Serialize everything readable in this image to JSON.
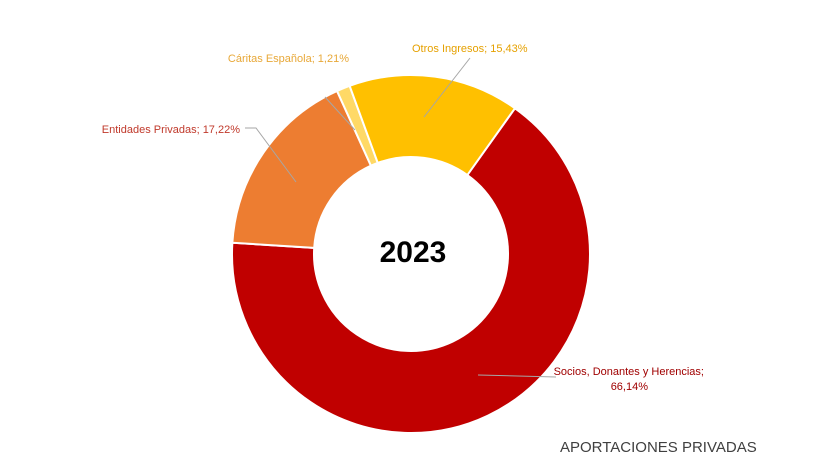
{
  "chart_data": {
    "type": "pie",
    "variant": "donut",
    "center_label": "2023",
    "footer_label": "APORTACIONES PRIVADAS",
    "start_category": "Socios, Donantes y Herencias",
    "slices": [
      {
        "label": "Socios, Donantes y Herencias",
        "label_line1": "Socios, Donantes y Herencias;",
        "label_line2": "66,14%",
        "value": 66.14,
        "color": "#C00000",
        "label_color": "#A00000"
      },
      {
        "label": "Entidades Privadas",
        "label_line1": "Entidades Privadas; 17,22%",
        "value": 17.22,
        "color": "#ED7D31",
        "label_color": "#C0392B"
      },
      {
        "label": "Cáritas Española",
        "label_line1": "Cáritas Española; 1,21%",
        "value": 1.21,
        "color": "#FFD966",
        "label_color": "#E8A838"
      },
      {
        "label": "Otros Ingresos",
        "label_line1": "Otros Ingresos; 15,43%",
        "value": 15.43,
        "color": "#FFC000",
        "label_color": "#E6A100"
      }
    ],
    "legend": "none"
  }
}
